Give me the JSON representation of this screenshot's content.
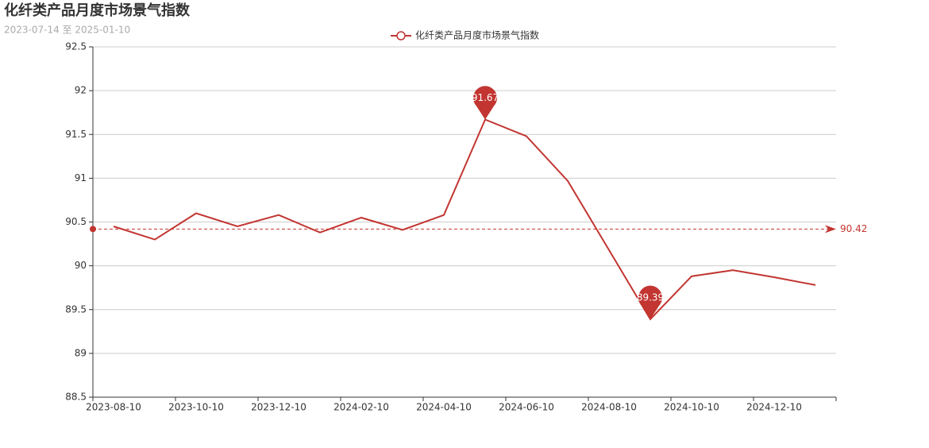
{
  "chart_data": {
    "type": "line",
    "title": "化纤类产品月度市场景气指数",
    "subtitle": "2023-07-14 至 2025-01-10",
    "categories": [
      "2023-08-10",
      null,
      "2023-10-10",
      null,
      "2023-12-10",
      null,
      "2024-02-10",
      null,
      "2024-04-10",
      null,
      "2024-06-10",
      null,
      "2024-08-10",
      null,
      "2024-10-10",
      null,
      "2024-12-10",
      null
    ],
    "series": [
      {
        "name": "化纤类产品月度市场景气指数",
        "color": "#c23531",
        "values": [
          90.45,
          90.3,
          90.6,
          90.45,
          90.58,
          90.38,
          90.55,
          90.41,
          90.58,
          91.67,
          91.48,
          90.97,
          90.18,
          89.39,
          89.88,
          89.95,
          89.87,
          89.78
        ]
      }
    ],
    "max_point": 9,
    "min_point": 13,
    "average_line": 90.42,
    "ylim": [
      88.5,
      92.5
    ],
    "yticks": [
      88.5,
      89,
      89.5,
      90,
      90.5,
      91,
      91.5,
      92,
      92.5
    ],
    "grid": true
  }
}
